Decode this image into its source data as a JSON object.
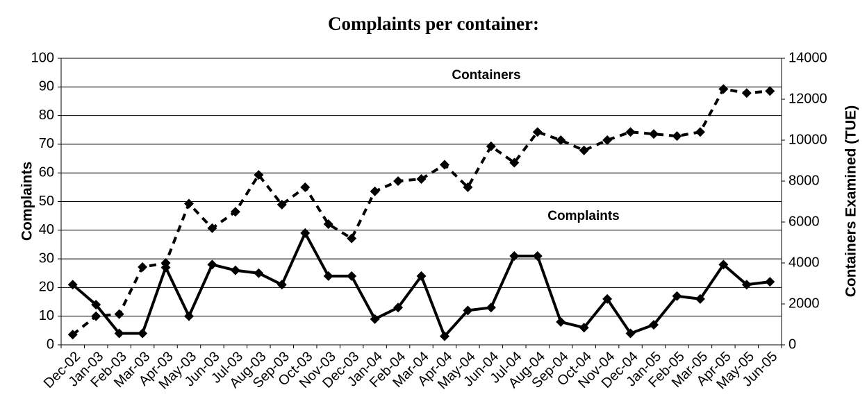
{
  "chart_data": {
    "type": "line",
    "title": "Complaints per container:",
    "y_label": "Complaints",
    "y2_label": "Containers Examined (TUE)",
    "annotations": [
      "Containers",
      "Complaints"
    ],
    "categories": [
      "Dec-02",
      "Jan-03",
      "Feb-03",
      "Mar-03",
      "Apr-03",
      "May-03",
      "Jun-03",
      "Jul-03",
      "Aug-03",
      "Sep-03",
      "Oct-03",
      "Nov-03",
      "Dec-03",
      "Jan-04",
      "Feb-04",
      "Mar-04",
      "Apr-04",
      "May-04",
      "Jun-04",
      "Jul-04",
      "Aug-04",
      "Sep-04",
      "Oct-04",
      "Nov-04",
      "Dec-04",
      "Jan-05",
      "Feb-05",
      "Mar-05",
      "Apr-05",
      "May-05",
      "Jun-05"
    ],
    "series": [
      {
        "name": "Complaints",
        "color": "#000000",
        "dash": false,
        "values": [
          21,
          14,
          4,
          4,
          27,
          10,
          28,
          26,
          25,
          21,
          39,
          24,
          24,
          9,
          13,
          24,
          3,
          12,
          13,
          31,
          31,
          8,
          6,
          16,
          4,
          7,
          17,
          16,
          28,
          21,
          22
        ]
      },
      {
        "name": "Containers",
        "color": "#000000",
        "dash": true,
        "axis": "y2",
        "values": [
          500,
          1400,
          1500,
          3800,
          4000,
          6900,
          5700,
          6500,
          8300,
          6850,
          7700,
          5900,
          5200,
          7500,
          8000,
          8100,
          8800,
          7700,
          9700,
          8900,
          10400,
          10000,
          9500,
          10000,
          10400,
          10300,
          10200,
          10400,
          12500,
          12300,
          12400
        ]
      }
    ],
    "ylim": [
      0,
      100
    ],
    "yticks": [
      0,
      10,
      20,
      30,
      40,
      50,
      60,
      70,
      80,
      90,
      100
    ],
    "y2lim": [
      0,
      14000
    ],
    "y2ticks": [
      0,
      2000,
      4000,
      6000,
      8000,
      10000,
      12000,
      14000
    ],
    "grid": true
  }
}
